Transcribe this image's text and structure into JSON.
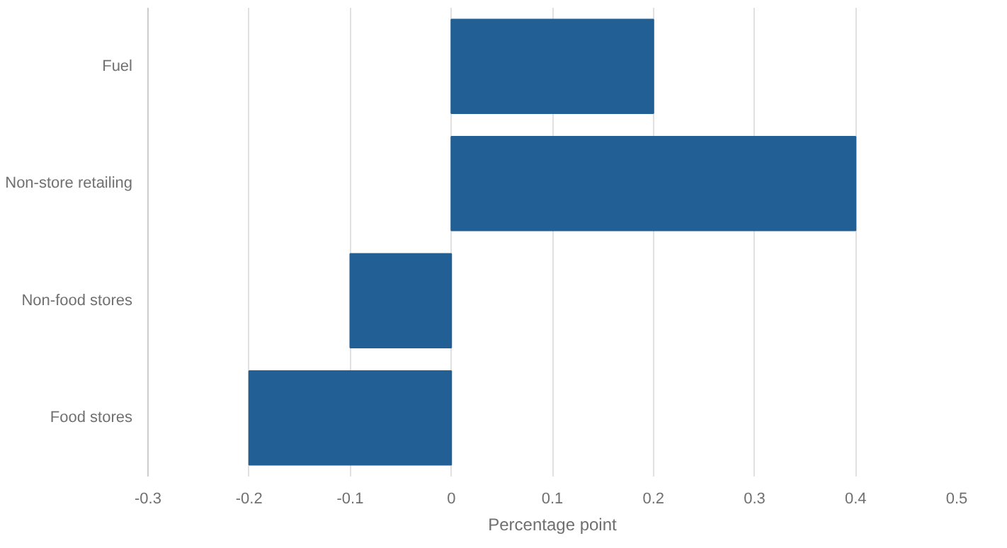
{
  "chart_data": {
    "type": "bar",
    "orientation": "horizontal",
    "xlabel": "Percentage point",
    "categories": [
      "Fuel",
      "Non-store retailing",
      "Non-food stores",
      "Food stores"
    ],
    "values": [
      0.2,
      0.4,
      -0.1,
      -0.2
    ],
    "color": "#215f94",
    "xlim": [
      -0.3,
      0.5
    ],
    "xticks": [
      -0.3,
      -0.2,
      -0.1,
      0,
      0.1,
      0.2,
      0.3,
      0.4,
      0.5
    ],
    "grid": "x"
  }
}
